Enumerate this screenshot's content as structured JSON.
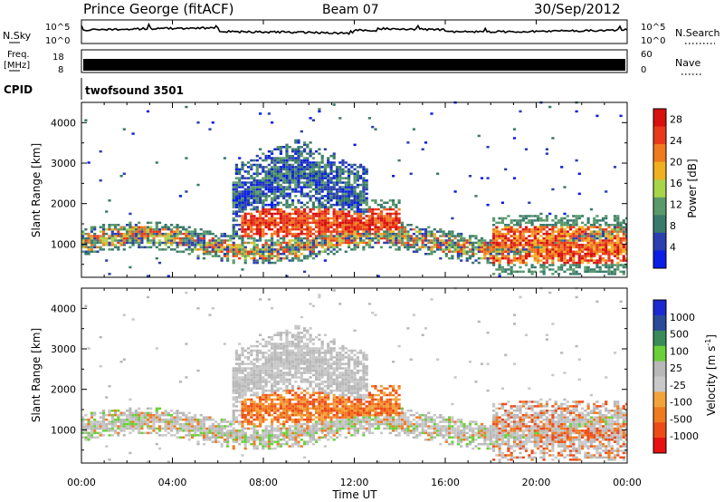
{
  "header": {
    "station": "Prince George (fitACF)",
    "beam": "Beam 07",
    "date": "30/Sep/2012"
  },
  "noise_panel": {
    "left_label": "N.Sky",
    "left_ticks": [
      "10^5",
      "10^0"
    ],
    "right_label": "N.Search",
    "right_ticks": [
      "10^5",
      "10^0"
    ]
  },
  "freq_panel": {
    "left_label_1": "Freq.",
    "left_label_2": "[MHz]",
    "left_ticks": [
      "18",
      "8"
    ],
    "right_label": "Nave",
    "right_ticks": [
      "60",
      "0"
    ]
  },
  "cpid": {
    "label": "CPID",
    "value": "twofsound 3501"
  },
  "colors": {
    "power": [
      "#0a1ee6",
      "#2a3fb0",
      "#3a7a6a",
      "#5a9a6a",
      "#a8d44a",
      "#f0b020",
      "#f07a20",
      "#e83a1a",
      "#d81010"
    ],
    "velocity": [
      "#e81010",
      "#ee4a18",
      "#f07a20",
      "#f2a43a",
      "#c8c8c8",
      "#b8b8b8",
      "#6ad03a",
      "#3a8a5a",
      "#2a4a9a",
      "#1a2ad0"
    ]
  },
  "chart_data": {
    "type": "heatmap",
    "x_axis": {
      "label": "Time UT",
      "ticks": [
        "00:00",
        "04:00",
        "08:00",
        "12:00",
        "16:00",
        "20:00",
        "00:00"
      ],
      "range_hours": [
        0,
        24
      ]
    },
    "y_axis": {
      "label": "Slant Range [km]",
      "ticks": [
        1000,
        2000,
        3000,
        4000
      ],
      "range": [
        180,
        4500
      ]
    },
    "power_panel": {
      "colorbar_label": "Power [dB]",
      "colorbar_ticks": [
        "4",
        "8",
        "12",
        "16",
        "20",
        "24",
        "28"
      ],
      "range": [
        0,
        30
      ]
    },
    "velocity_panel": {
      "colorbar_label": "Velocity",
      "colorbar_unit": "[m s",
      "colorbar_unit_sup": "-1",
      "colorbar_unit_end": "]",
      "colorbar_ticks": [
        "1000",
        "500",
        "100",
        "25",
        "-25",
        "-100",
        "-500",
        "-1000"
      ]
    },
    "echo_regions": [
      {
        "name": "near-range band",
        "start_h": 0,
        "end_h": 24,
        "range_km": [
          700,
          1300
        ]
      },
      {
        "name": "day-side high-power patch",
        "start_h": 7,
        "end_h": 14,
        "range_km": [
          1000,
          2000
        ]
      },
      {
        "name": "far-range arc",
        "start_h": 6.5,
        "end_h": 12.5,
        "range_km": [
          2000,
          3500
        ]
      },
      {
        "name": "evening patch",
        "start_h": 18,
        "end_h": 24,
        "range_km": [
          300,
          1600
        ]
      }
    ]
  }
}
